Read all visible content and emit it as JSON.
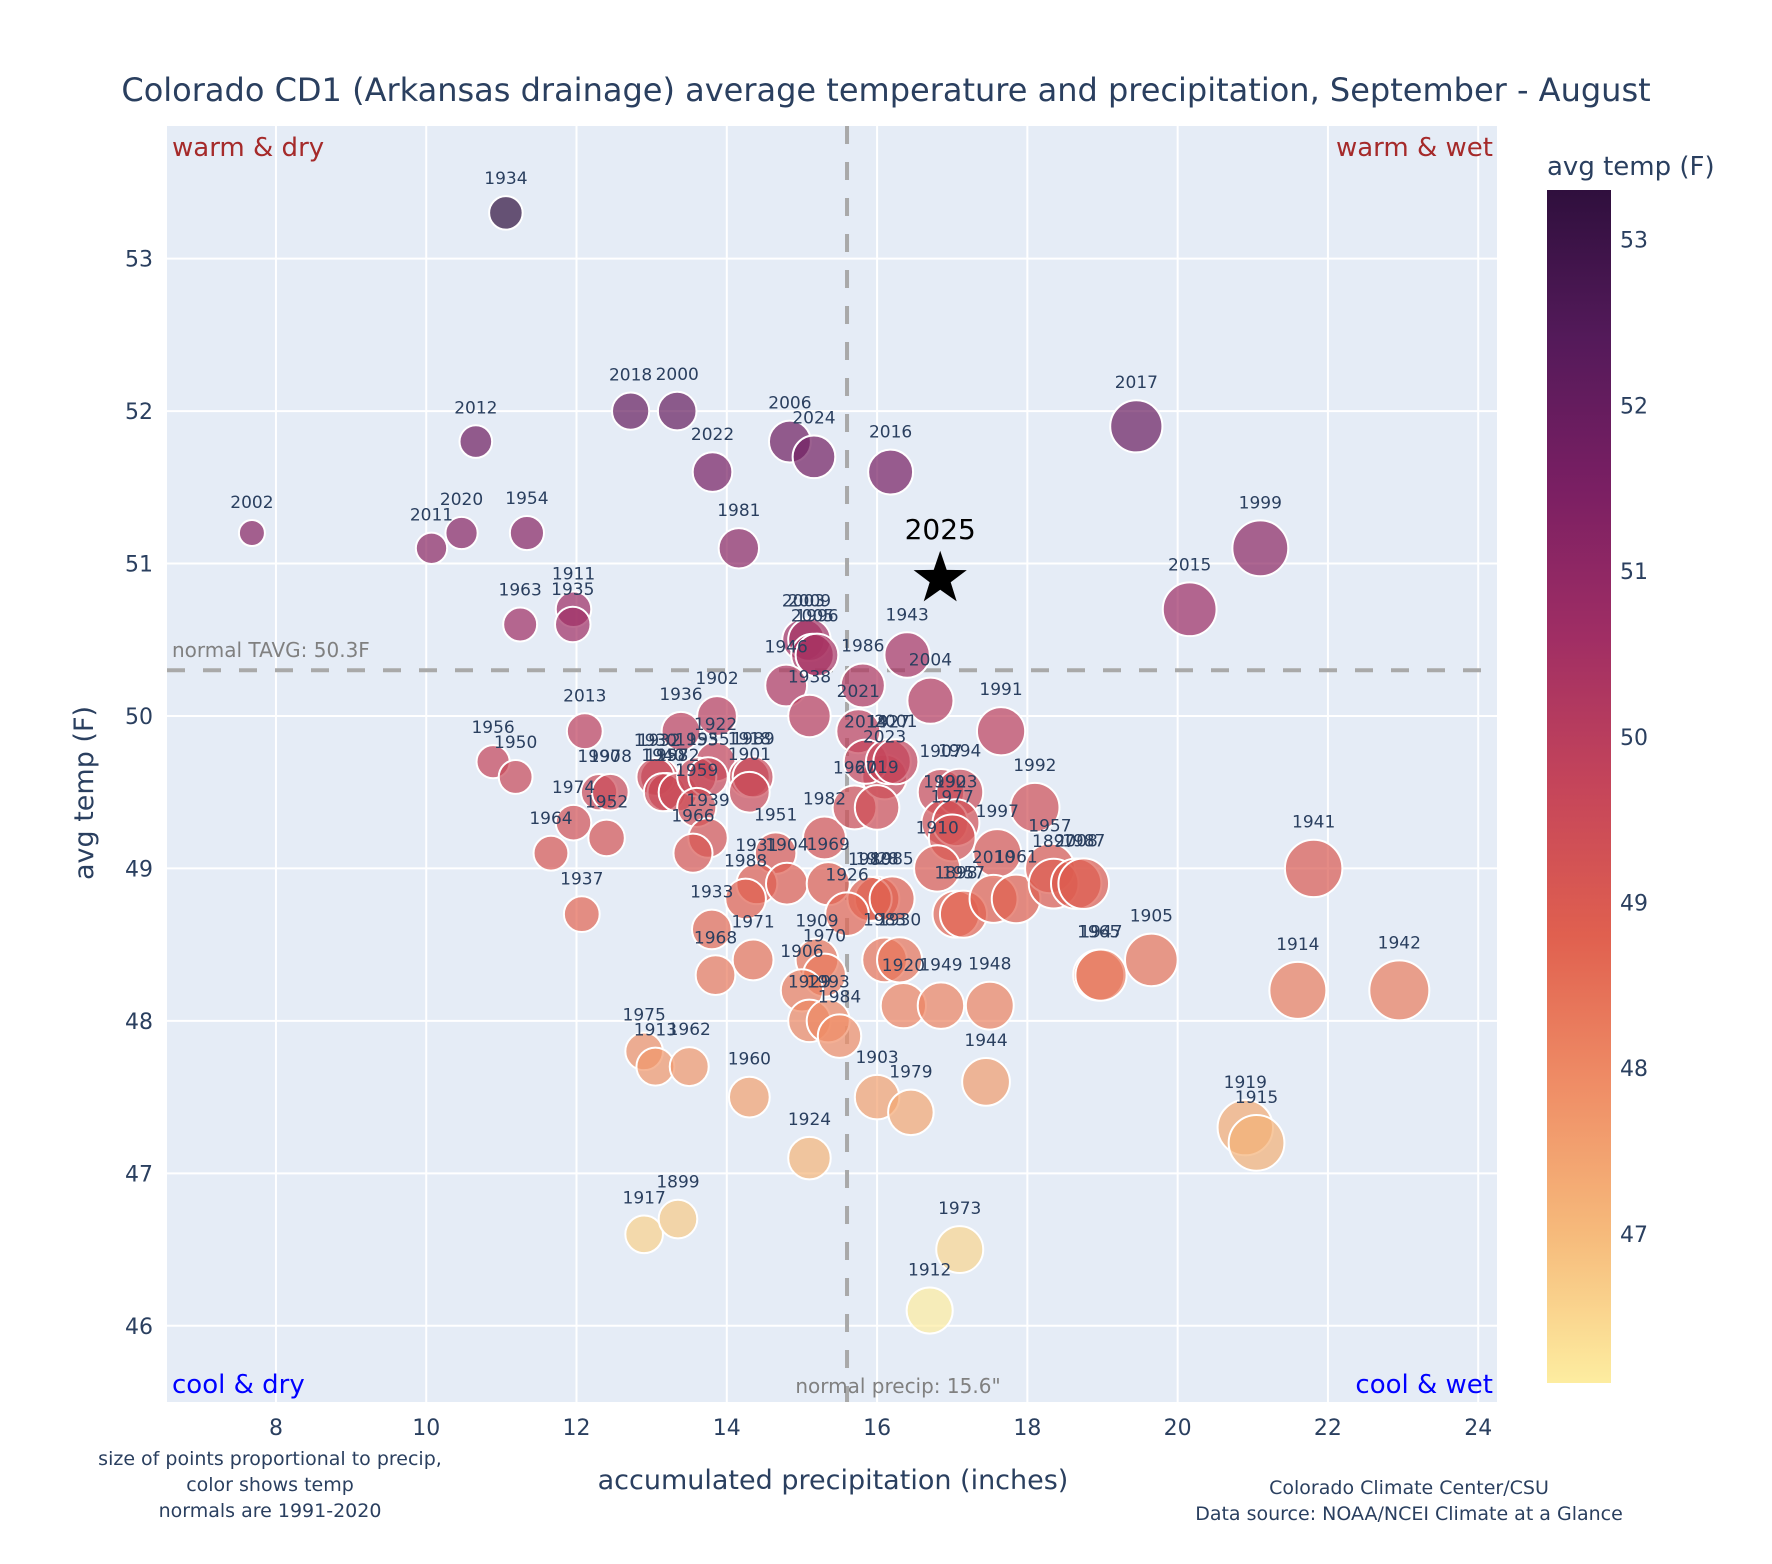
{
  "chart_data": {
    "type": "scatter",
    "title": "Colorado CD1 (Arkansas drainage) average temperature and precipitation, September - August",
    "xlabel": "accumulated precipitation (inches)",
    "ylabel": "avg temp (F)",
    "xlim": [
      6.55,
      24.25
    ],
    "ylim": [
      45.5,
      53.87
    ],
    "xticks": [
      8,
      10,
      12,
      14,
      16,
      18,
      20,
      22,
      24
    ],
    "yticks": [
      46,
      47,
      48,
      49,
      50,
      51,
      52,
      53
    ],
    "grid": true,
    "colorbar": {
      "title": "avg temp (F)",
      "range": [
        46.1,
        53.3
      ],
      "ticks": [
        47,
        48,
        49,
        50,
        51,
        52,
        53
      ],
      "colorscale": [
        "#fdeda0",
        "#f6ba7b",
        "#ef8d66",
        "#e0604f",
        "#c5455a",
        "#a02e64",
        "#7a1f63",
        "#541a5a",
        "#2f0f3d"
      ],
      "placement": "right"
    },
    "normals": {
      "temp": 50.3,
      "precip": 15.6,
      "temp_label": "normal TAVG: 50.3F",
      "precip_label": "normal precip: 15.6\""
    },
    "quadrants": {
      "top_left": "warm & dry",
      "top_right": "warm & wet",
      "bottom_left": "cool & dry",
      "bottom_right": "cool & wet"
    },
    "highlight": {
      "year": "2025",
      "precip": 16.84,
      "temp": 50.9,
      "marker": "star"
    },
    "notes": {
      "left": [
        "size of points proportional to precip,",
        "color shows temp",
        "normals are 1991-2020"
      ],
      "right": [
        "Colorado Climate Center/CSU",
        "Data source: NOAA/NCEI Climate at a Glance"
      ]
    },
    "points": [
      {
        "year": "1934",
        "precip": 11.06,
        "temp": 53.3
      },
      {
        "year": "2018",
        "precip": 12.72,
        "temp": 52.0
      },
      {
        "year": "2000",
        "precip": 13.34,
        "temp": 52.0
      },
      {
        "year": "2012",
        "precip": 10.66,
        "temp": 51.8
      },
      {
        "year": "2006",
        "precip": 14.84,
        "temp": 51.8
      },
      {
        "year": "2024",
        "precip": 15.16,
        "temp": 51.7
      },
      {
        "year": "2022",
        "precip": 13.81,
        "temp": 51.6
      },
      {
        "year": "2016",
        "precip": 16.18,
        "temp": 51.6
      },
      {
        "year": "2017",
        "precip": 19.45,
        "temp": 51.9
      },
      {
        "year": "2002",
        "precip": 7.68,
        "temp": 51.2
      },
      {
        "year": "2011",
        "precip": 10.07,
        "temp": 51.1
      },
      {
        "year": "2020",
        "precip": 10.47,
        "temp": 51.2
      },
      {
        "year": "1954",
        "precip": 11.34,
        "temp": 51.2
      },
      {
        "year": "1981",
        "precip": 14.16,
        "temp": 51.1
      },
      {
        "year": "1999",
        "precip": 21.1,
        "temp": 51.1
      },
      {
        "year": "1911",
        "precip": 11.96,
        "temp": 50.7
      },
      {
        "year": "1935",
        "precip": 11.95,
        "temp": 50.6
      },
      {
        "year": "1963",
        "precip": 11.25,
        "temp": 50.6
      },
      {
        "year": "2015",
        "precip": 20.16,
        "temp": 50.7
      },
      {
        "year": "2003",
        "precip": 15.02,
        "temp": 50.5
      },
      {
        "year": "2009",
        "precip": 15.1,
        "temp": 50.5
      },
      {
        "year": "2005",
        "precip": 15.14,
        "temp": 50.4
      },
      {
        "year": "1946",
        "precip": 14.79,
        "temp": 50.2
      },
      {
        "year": "1996",
        "precip": 15.2,
        "temp": 50.4
      },
      {
        "year": "1943",
        "precip": 16.4,
        "temp": 50.4
      },
      {
        "year": "1986",
        "precip": 15.81,
        "temp": 50.2
      },
      {
        "year": "1938",
        "precip": 15.1,
        "temp": 50.0
      },
      {
        "year": "2004",
        "precip": 16.71,
        "temp": 50.1
      },
      {
        "year": "1991",
        "precip": 17.65,
        "temp": 49.9
      },
      {
        "year": "2021",
        "precip": 15.75,
        "temp": 49.9
      },
      {
        "year": "1902",
        "precip": 13.87,
        "temp": 50.0
      },
      {
        "year": "1936",
        "precip": 13.39,
        "temp": 49.9
      },
      {
        "year": "1932",
        "precip": 13.1,
        "temp": 49.6
      },
      {
        "year": "1922",
        "precip": 13.85,
        "temp": 49.7
      },
      {
        "year": "2013",
        "precip": 12.11,
        "temp": 49.9
      },
      {
        "year": "1956",
        "precip": 10.89,
        "temp": 49.7
      },
      {
        "year": "1950",
        "precip": 11.19,
        "temp": 49.6
      },
      {
        "year": "1990",
        "precip": 12.3,
        "temp": 49.5
      },
      {
        "year": "1978",
        "precip": 12.45,
        "temp": 49.5
      },
      {
        "year": "1930",
        "precip": 13.05,
        "temp": 49.6
      },
      {
        "year": "1958",
        "precip": 13.2,
        "temp": 49.5
      },
      {
        "year": "1940",
        "precip": 13.15,
        "temp": 49.5
      },
      {
        "year": "1972",
        "precip": 13.35,
        "temp": 49.5
      },
      {
        "year": "1953",
        "precip": 13.6,
        "temp": 49.6
      },
      {
        "year": "1955",
        "precip": 13.75,
        "temp": 49.6
      },
      {
        "year": "1918",
        "precip": 14.3,
        "temp": 49.6
      },
      {
        "year": "1989",
        "precip": 14.35,
        "temp": 49.6
      },
      {
        "year": "1901",
        "precip": 14.3,
        "temp": 49.5
      },
      {
        "year": "1959",
        "precip": 13.6,
        "temp": 49.4
      },
      {
        "year": "1939",
        "precip": 13.75,
        "temp": 49.2
      },
      {
        "year": "1966",
        "precip": 13.55,
        "temp": 49.1
      },
      {
        "year": "1974",
        "precip": 11.96,
        "temp": 49.3
      },
      {
        "year": "1952",
        "precip": 12.4,
        "temp": 49.2
      },
      {
        "year": "1964",
        "precip": 11.66,
        "temp": 49.1
      },
      {
        "year": "1937",
        "precip": 12.07,
        "temp": 48.7
      },
      {
        "year": "1951",
        "precip": 14.65,
        "temp": 49.1
      },
      {
        "year": "1931",
        "precip": 14.4,
        "temp": 48.9
      },
      {
        "year": "1904",
        "precip": 14.8,
        "temp": 48.9
      },
      {
        "year": "1988",
        "precip": 14.25,
        "temp": 48.8
      },
      {
        "year": "1933",
        "precip": 13.8,
        "temp": 48.6
      },
      {
        "year": "1971",
        "precip": 14.35,
        "temp": 48.4
      },
      {
        "year": "1968",
        "precip": 13.85,
        "temp": 48.3
      },
      {
        "year": "1982",
        "precip": 15.3,
        "temp": 49.2
      },
      {
        "year": "1967",
        "precip": 15.7,
        "temp": 49.4
      },
      {
        "year": "2023",
        "precip": 16.1,
        "temp": 49.6
      },
      {
        "year": "2014",
        "precip": 15.85,
        "temp": 49.7
      },
      {
        "year": "1927",
        "precip": 16.15,
        "temp": 49.7
      },
      {
        "year": "2001",
        "precip": 16.25,
        "temp": 49.7
      },
      {
        "year": "2019",
        "precip": 16.0,
        "temp": 49.4
      },
      {
        "year": "1969",
        "precip": 15.35,
        "temp": 48.9
      },
      {
        "year": "1928",
        "precip": 16.0,
        "temp": 48.8
      },
      {
        "year": "1980",
        "precip": 15.9,
        "temp": 48.8
      },
      {
        "year": "1985",
        "precip": 16.2,
        "temp": 48.8
      },
      {
        "year": "1926",
        "precip": 15.6,
        "temp": 48.7
      },
      {
        "year": "1909",
        "precip": 15.2,
        "temp": 48.4
      },
      {
        "year": "1970",
        "precip": 15.3,
        "temp": 48.3
      },
      {
        "year": "1983",
        "precip": 16.1,
        "temp": 48.4
      },
      {
        "year": "1930b",
        "precip": 16.3,
        "temp": 48.4
      },
      {
        "year": "1906",
        "precip": 15.0,
        "temp": 48.2
      },
      {
        "year": "1929",
        "precip": 15.1,
        "temp": 48.0
      },
      {
        "year": "1993",
        "precip": 15.35,
        "temp": 48.0
      },
      {
        "year": "1984",
        "precip": 15.5,
        "temp": 47.9
      },
      {
        "year": "1920",
        "precip": 16.35,
        "temp": 48.1
      },
      {
        "year": "1949",
        "precip": 16.85,
        "temp": 48.1
      },
      {
        "year": "1948",
        "precip": 17.5,
        "temp": 48.1
      },
      {
        "year": "1907",
        "precip": 16.85,
        "temp": 49.5
      },
      {
        "year": "1994",
        "precip": 17.1,
        "temp": 49.5
      },
      {
        "year": "1990b",
        "precip": 16.9,
        "temp": 49.3
      },
      {
        "year": "1923",
        "precip": 17.05,
        "temp": 49.3
      },
      {
        "year": "1977",
        "precip": 17.0,
        "temp": 49.2
      },
      {
        "year": "1910",
        "precip": 16.8,
        "temp": 49.0
      },
      {
        "year": "1997",
        "precip": 17.6,
        "temp": 49.1
      },
      {
        "year": "1898",
        "precip": 17.05,
        "temp": 48.7
      },
      {
        "year": "1957b",
        "precip": 17.15,
        "temp": 48.7
      },
      {
        "year": "2010",
        "precip": 17.55,
        "temp": 48.8
      },
      {
        "year": "1961",
        "precip": 17.85,
        "temp": 48.8
      },
      {
        "year": "1957",
        "precip": 18.3,
        "temp": 49.0
      },
      {
        "year": "1992",
        "precip": 18.1,
        "temp": 49.4
      },
      {
        "year": "1897",
        "precip": 18.35,
        "temp": 48.9
      },
      {
        "year": "2008",
        "precip": 18.65,
        "temp": 48.9
      },
      {
        "year": "1987",
        "precip": 18.75,
        "temp": 48.9
      },
      {
        "year": "1965",
        "precip": 18.95,
        "temp": 48.3
      },
      {
        "year": "1947",
        "precip": 18.98,
        "temp": 48.3
      },
      {
        "year": "1905",
        "precip": 19.65,
        "temp": 48.4
      },
      {
        "year": "1944",
        "precip": 17.45,
        "temp": 47.6
      },
      {
        "year": "1903",
        "precip": 16.0,
        "temp": 47.5
      },
      {
        "year": "1979",
        "precip": 16.45,
        "temp": 47.4
      },
      {
        "year": "1975",
        "precip": 12.9,
        "temp": 47.8
      },
      {
        "year": "1913",
        "precip": 13.05,
        "temp": 47.7
      },
      {
        "year": "1962",
        "precip": 13.5,
        "temp": 47.7
      },
      {
        "year": "1960",
        "precip": 14.3,
        "temp": 47.5
      },
      {
        "year": "1924",
        "precip": 15.1,
        "temp": 47.1
      },
      {
        "year": "1917",
        "precip": 12.9,
        "temp": 46.6
      },
      {
        "year": "1899",
        "precip": 13.35,
        "temp": 46.7
      },
      {
        "year": "1973",
        "precip": 17.1,
        "temp": 46.5
      },
      {
        "year": "1912",
        "precip": 16.7,
        "temp": 46.1
      },
      {
        "year": "1941",
        "precip": 21.81,
        "temp": 49.0
      },
      {
        "year": "1914",
        "precip": 21.6,
        "temp": 48.2
      },
      {
        "year": "1942",
        "precip": 22.95,
        "temp": 48.2
      },
      {
        "year": "1919",
        "precip": 20.9,
        "temp": 47.3
      },
      {
        "year": "1915",
        "precip": 21.05,
        "temp": 47.2
      }
    ]
  }
}
